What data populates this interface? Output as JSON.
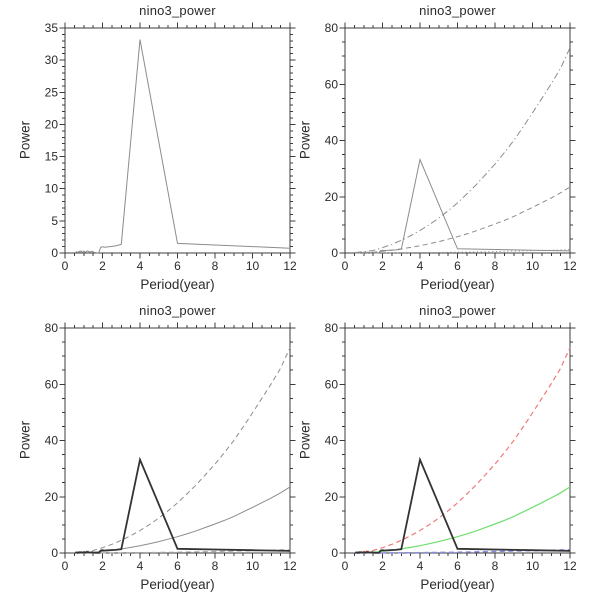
{
  "page": {
    "background": "#ffffff"
  },
  "chart_data": {
    "type": "line",
    "grid": false,
    "legend": "none",
    "axis_color": "#3c3c3c",
    "text_color": "#2b2b2b",
    "points": {
      "spectrum": [
        [
          0.55,
          0.02
        ],
        [
          0.63,
          0.2
        ],
        [
          0.69,
          0.05
        ],
        [
          0.75,
          0.28
        ],
        [
          0.8,
          0.1
        ],
        [
          0.86,
          0.32
        ],
        [
          0.92,
          0.1
        ],
        [
          1.0,
          0.3
        ],
        [
          1.09,
          0.12
        ],
        [
          1.2,
          0.32
        ],
        [
          1.33,
          0.15
        ],
        [
          1.45,
          0.28
        ],
        [
          1.55,
          0.1
        ],
        [
          1.71,
          0.02
        ],
        [
          1.8,
          0.05
        ],
        [
          1.9,
          0.85
        ],
        [
          2.0,
          0.98
        ],
        [
          2.1,
          0.88
        ],
        [
          2.4,
          1.0
        ],
        [
          2.7,
          1.1
        ],
        [
          3.0,
          1.35
        ],
        [
          4.0,
          33.2
        ],
        [
          6.0,
          1.5
        ],
        [
          8.0,
          1.25
        ],
        [
          10.0,
          1.0
        ],
        [
          12.0,
          0.75
        ]
      ],
      "markov": [
        [
          0.55,
          0.05
        ],
        [
          1.0,
          0.16
        ],
        [
          1.5,
          0.3
        ],
        [
          2.0,
          0.62
        ],
        [
          2.5,
          1.0
        ],
        [
          3.0,
          1.45
        ],
        [
          3.5,
          2.0
        ],
        [
          4.0,
          2.6
        ],
        [
          4.5,
          3.3
        ],
        [
          5.0,
          4.05
        ],
        [
          5.5,
          4.9
        ],
        [
          6.0,
          5.8
        ],
        [
          6.5,
          6.8
        ],
        [
          7.0,
          7.9
        ],
        [
          7.5,
          9.1
        ],
        [
          8.0,
          10.3
        ],
        [
          8.5,
          11.6
        ],
        [
          9.0,
          13.0
        ],
        [
          9.5,
          14.6
        ],
        [
          10.0,
          16.2
        ],
        [
          10.5,
          17.9
        ],
        [
          11.0,
          19.6
        ],
        [
          11.5,
          21.4
        ],
        [
          12.0,
          23.5
        ]
      ],
      "upper95": [
        [
          0.55,
          0.15
        ],
        [
          1.0,
          0.5
        ],
        [
          1.5,
          0.9
        ],
        [
          2.0,
          1.9
        ],
        [
          2.5,
          3.1
        ],
        [
          3.0,
          4.5
        ],
        [
          3.5,
          6.1
        ],
        [
          4.0,
          8.0
        ],
        [
          4.5,
          10.1
        ],
        [
          5.0,
          12.4
        ],
        [
          5.5,
          15.0
        ],
        [
          6.0,
          17.8
        ],
        [
          6.5,
          21.0
        ],
        [
          7.0,
          24.3
        ],
        [
          7.5,
          27.9
        ],
        [
          8.0,
          31.6
        ],
        [
          8.5,
          35.7
        ],
        [
          9.0,
          40.0
        ],
        [
          9.5,
          44.8
        ],
        [
          10.0,
          49.8
        ],
        [
          10.5,
          55.0
        ],
        [
          11.0,
          60.2
        ],
        [
          11.5,
          65.7
        ],
        [
          12.0,
          73.0
        ]
      ],
      "lower5": [
        [
          0.55,
          0.0
        ],
        [
          1.0,
          0.01
        ],
        [
          2.0,
          0.03
        ],
        [
          3.0,
          0.07
        ],
        [
          4.0,
          0.13
        ],
        [
          5.0,
          0.21
        ],
        [
          6.0,
          0.3
        ],
        [
          7.0,
          0.41
        ],
        [
          8.0,
          0.53
        ],
        [
          9.0,
          0.67
        ],
        [
          10.0,
          0.83
        ],
        [
          11.0,
          1.0
        ],
        [
          12.0,
          1.2
        ]
      ]
    },
    "panels": [
      {
        "title": "nino3_power",
        "xlabel": "Period(year)",
        "ylabel": "Power",
        "xlim": [
          0,
          12
        ],
        "ylim": [
          0,
          35
        ],
        "xticks": [
          0,
          2,
          4,
          6,
          8,
          10,
          12
        ],
        "yticks": [
          0,
          5,
          10,
          15,
          20,
          25,
          30,
          35
        ],
        "xtick_minor_step": 0.5,
        "ytick_minor_step": 1,
        "series": [
          {
            "ref": "spectrum",
            "color": "#8c8c8c",
            "width": 1,
            "dash": "solid"
          }
        ]
      },
      {
        "title": "nino3_power",
        "xlabel": "Period(year)",
        "ylabel": "Power",
        "xlim": [
          0,
          12
        ],
        "ylim": [
          0,
          80
        ],
        "xticks": [
          0,
          2,
          4,
          6,
          8,
          10,
          12
        ],
        "yticks": [
          0,
          20,
          40,
          60,
          80
        ],
        "xtick_minor_step": 0.5,
        "ytick_minor_step": 5,
        "series": [
          {
            "ref": "markov",
            "color": "#8c8c8c",
            "width": 1,
            "dash": "dashed"
          },
          {
            "ref": "lower5",
            "color": "#9a9a9a",
            "width": 1,
            "dash": "dotted"
          },
          {
            "ref": "upper95",
            "color": "#8c8c8c",
            "width": 1,
            "dash": "dashdot"
          },
          {
            "ref": "spectrum",
            "color": "#8c8c8c",
            "width": 1,
            "dash": "solid"
          }
        ]
      },
      {
        "title": "nino3_power",
        "xlabel": "Period(year)",
        "ylabel": "Power",
        "xlim": [
          0,
          12
        ],
        "ylim": [
          0,
          80
        ],
        "xticks": [
          0,
          2,
          4,
          6,
          8,
          10,
          12
        ],
        "yticks": [
          0,
          20,
          40,
          60,
          80
        ],
        "xtick_minor_step": 0.5,
        "ytick_minor_step": 5,
        "series": [
          {
            "ref": "markov",
            "color": "#8c8c8c",
            "width": 1,
            "dash": "solid"
          },
          {
            "ref": "lower5",
            "color": "#a8a8a8",
            "width": 1.2,
            "dash": "dashed"
          },
          {
            "ref": "upper95",
            "color": "#8c8c8c",
            "width": 1,
            "dash": "dashed"
          },
          {
            "ref": "spectrum",
            "color": "#333333",
            "width": 1.8,
            "dash": "solid"
          }
        ]
      },
      {
        "title": "nino3_power",
        "xlabel": "Period(year)",
        "ylabel": "Power",
        "xlim": [
          0,
          12
        ],
        "ylim": [
          0,
          80
        ],
        "xticks": [
          0,
          2,
          4,
          6,
          8,
          10,
          12
        ],
        "yticks": [
          0,
          20,
          40,
          60,
          80
        ],
        "xtick_minor_step": 0.5,
        "ytick_minor_step": 5,
        "series": [
          {
            "ref": "markov",
            "color": "#6ede6e",
            "width": 1.2,
            "dash": "solid"
          },
          {
            "ref": "lower5",
            "color": "#8888e6",
            "width": 1.4,
            "dash": "dashed"
          },
          {
            "ref": "upper95",
            "color": "#f07a7a",
            "width": 1.2,
            "dash": "dashed"
          },
          {
            "ref": "spectrum",
            "color": "#333333",
            "width": 1.8,
            "dash": "solid"
          }
        ]
      }
    ]
  }
}
